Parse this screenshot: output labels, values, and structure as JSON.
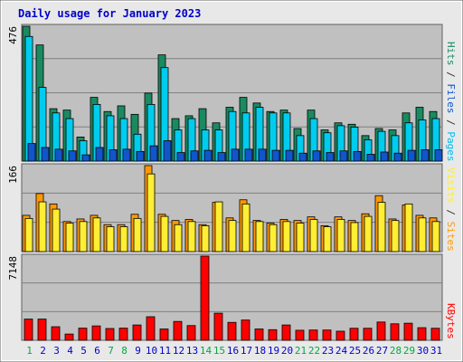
{
  "chart_data": {
    "type": "bar",
    "title": "Daily usage for January 2023",
    "categories": [
      "1",
      "2",
      "3",
      "4",
      "5",
      "6",
      "7",
      "8",
      "9",
      "10",
      "11",
      "12",
      "13",
      "14",
      "15",
      "16",
      "17",
      "18",
      "19",
      "20",
      "21",
      "22",
      "23",
      "24",
      "25",
      "26",
      "27",
      "28",
      "29",
      "30",
      "31"
    ],
    "weekend_days": [
      "1",
      "7",
      "8",
      "14",
      "15",
      "21",
      "22",
      "28",
      "29"
    ],
    "panels": [
      {
        "id": "hits-files-pages",
        "ymax": 476,
        "ymax_label": "476",
        "series": [
          {
            "name": "Hits",
            "color": "#1a8a60",
            "values": [
              476,
              410,
              185,
              180,
              85,
              225,
              175,
              195,
              165,
              240,
              375,
              150,
              160,
              185,
              135,
              190,
              225,
              205,
              175,
              180,
              115,
              180,
              110,
              135,
              130,
              90,
              115,
              110,
              170,
              190,
              175
            ]
          },
          {
            "name": "Files",
            "color": "#00ccee",
            "values": [
              440,
              260,
              170,
              150,
              72,
              200,
              160,
              150,
              95,
              200,
              330,
              110,
              150,
              110,
              110,
              175,
              170,
              190,
              170,
              170,
              90,
              150,
              100,
              125,
              120,
              75,
              105,
              90,
              135,
              145,
              150
            ]
          },
          {
            "name": "Pages",
            "color": "#1055cc",
            "values": [
              62,
              48,
              42,
              36,
              22,
              48,
              40,
              42,
              34,
              54,
              72,
              30,
              36,
              38,
              30,
              42,
              42,
              42,
              38,
              38,
              28,
              36,
              30,
              36,
              34,
              24,
              32,
              28,
              38,
              40,
              40
            ]
          }
        ],
        "axis_label_parts": [
          {
            "text": "Pages",
            "color": "#00bbee"
          },
          {
            "text": " / ",
            "color": "#333333"
          },
          {
            "text": "Files",
            "color": "#1055cc"
          },
          {
            "text": " / ",
            "color": "#333333"
          },
          {
            "text": "Hits",
            "color": "#1a8a60"
          }
        ]
      },
      {
        "id": "visits-sites",
        "ymax": 166,
        "ymax_label": "166",
        "series": [
          {
            "name": "Visits",
            "color": "#ff9900",
            "values": [
              70,
              112,
              92,
              58,
              63,
              70,
              52,
              52,
              72,
              166,
              72,
              60,
              62,
              52,
              95,
              65,
              100,
              60,
              55,
              62,
              60,
              67,
              50,
              67,
              60,
              73,
              108,
              63,
              90,
              70,
              65
            ]
          },
          {
            "name": "Sites",
            "color": "#ffee33",
            "values": [
              64,
              96,
              82,
              55,
              58,
              65,
              48,
              48,
              64,
              150,
              68,
              52,
              58,
              50,
              96,
              60,
              92,
              58,
              52,
              58,
              55,
              62,
              48,
              62,
              56,
              68,
              95,
              60,
              92,
              65,
              58
            ]
          }
        ],
        "axis_label_parts": [
          {
            "text": "Sites",
            "color": "#ff9900"
          },
          {
            "text": " / ",
            "color": "#333333"
          },
          {
            "text": "Visits",
            "color": "#ffee33"
          }
        ]
      },
      {
        "id": "kbytes",
        "ymax": 7148,
        "ymax_label": "7148",
        "series": [
          {
            "name": "KBytes",
            "color": "#ff0000",
            "values": [
              1800,
              1800,
              1150,
              530,
              1030,
              1220,
              1000,
              1030,
              1300,
              2000,
              960,
              1600,
              1250,
              7148,
              2300,
              1520,
              1720,
              960,
              900,
              1300,
              850,
              870,
              870,
              770,
              1020,
              1020,
              1550,
              1400,
              1450,
              1070,
              1020
            ]
          }
        ],
        "axis_label_parts": [
          {
            "text": "KBytes",
            "color": "#ff0000"
          }
        ]
      }
    ]
  },
  "colors": {
    "title": "#0000cc",
    "plot_bg": "#c0c0c0",
    "frame_bg": "#e8e8e8",
    "grid": "#808080",
    "weekday_label": "#0000cc",
    "weekend_label": "#00aa44"
  }
}
